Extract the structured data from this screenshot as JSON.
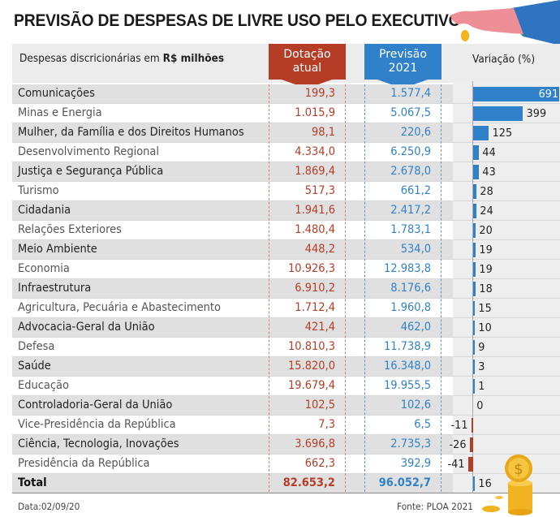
{
  "title": "PREVISÃO DE DESPESAS DE LIVRE USO PELO EXECUTIVO",
  "header": {
    "label_prefix": "Despesas discricionárias em ",
    "label_bold": "R$ milhões",
    "col_dotacao": "Dotação atual",
    "col_previsao": "Previsão 2021",
    "col_variacao": "Variação (%)"
  },
  "colors": {
    "dotacao": "#b53d26",
    "previsao": "#3081c9",
    "positive_bar": "#3081c9",
    "negative_bar": "#b53d26"
  },
  "footer": {
    "date": "Data:02/09/20",
    "source": "Fonte: PLOA 2021"
  },
  "icons": {
    "hand": "hand-dropping-coin-illustration",
    "coins": "gold-coin-stack-illustration"
  },
  "chart_data": {
    "type": "table",
    "title": "PREVISÃO DE DESPESAS DE LIVRE USO PELO EXECUTIVO",
    "unit": "R$ milhões",
    "columns": [
      "Despesas discricionárias",
      "Dotação atual",
      "Previsão 2021",
      "Variação (%)"
    ],
    "rows": [
      {
        "name": "Comunicações",
        "dotacao": "199,3",
        "previsao": "1.577,4",
        "variacao": 691
      },
      {
        "name": "Minas e Energia",
        "dotacao": "1.015,9",
        "previsao": "5.067,5",
        "variacao": 399
      },
      {
        "name": "Mulher, da Família e dos Direitos Humanos",
        "dotacao": "98,1",
        "previsao": "220,6",
        "variacao": 125
      },
      {
        "name": "Desenvolvimento Regional",
        "dotacao": "4.334,0",
        "previsao": "6.250,9",
        "variacao": 44
      },
      {
        "name": "Justiça e Segurança Pública",
        "dotacao": "1.869,4",
        "previsao": "2.678,0",
        "variacao": 43
      },
      {
        "name": "Turismo",
        "dotacao": "517,3",
        "previsao": "661,2",
        "variacao": 28
      },
      {
        "name": "Cidadania",
        "dotacao": "1.941,6",
        "previsao": "2.417,2",
        "variacao": 24
      },
      {
        "name": "Relações Exteriores",
        "dotacao": "1.480,4",
        "previsao": "1.783,1",
        "variacao": 20
      },
      {
        "name": "Meio Ambiente",
        "dotacao": "448,2",
        "previsao": "534,0",
        "variacao": 19
      },
      {
        "name": "Economia",
        "dotacao": "10.926,3",
        "previsao": "12.983,8",
        "variacao": 19
      },
      {
        "name": "Infraestrutura",
        "dotacao": "6.910,2",
        "previsao": "8.176,6",
        "variacao": 18
      },
      {
        "name": "Agricultura, Pecuária e Abastecimento",
        "dotacao": "1.712,4",
        "previsao": "1.960,8",
        "variacao": 15
      },
      {
        "name": "Advocacia-Geral da União",
        "dotacao": "421,4",
        "previsao": "462,0",
        "variacao": 10
      },
      {
        "name": "Defesa",
        "dotacao": "10.810,3",
        "previsao": "11.738,9",
        "variacao": 9
      },
      {
        "name": "Saúde",
        "dotacao": "15.820,0",
        "previsao": "16.348,0",
        "variacao": 3
      },
      {
        "name": "Educação",
        "dotacao": "19.679,4",
        "previsao": "19.955,5",
        "variacao": 1
      },
      {
        "name": "Controladoria-Geral da União",
        "dotacao": "102,5",
        "previsao": "102,6",
        "variacao": 0
      },
      {
        "name": "Vice-Presidência da República",
        "dotacao": "7,3",
        "previsao": "6,5",
        "variacao": -11
      },
      {
        "name": "Ciência, Tecnologia, Inovações",
        "dotacao": "3.696,8",
        "previsao": "2.735,3",
        "variacao": -26
      },
      {
        "name": "Presidência da República",
        "dotacao": "662,3",
        "previsao": "392,9",
        "variacao": -41
      }
    ],
    "total": {
      "name": "Total",
      "dotacao": "82.653,2",
      "previsao": "96.052,7",
      "variacao": 16
    },
    "bar_range": [
      -41,
      691
    ]
  }
}
